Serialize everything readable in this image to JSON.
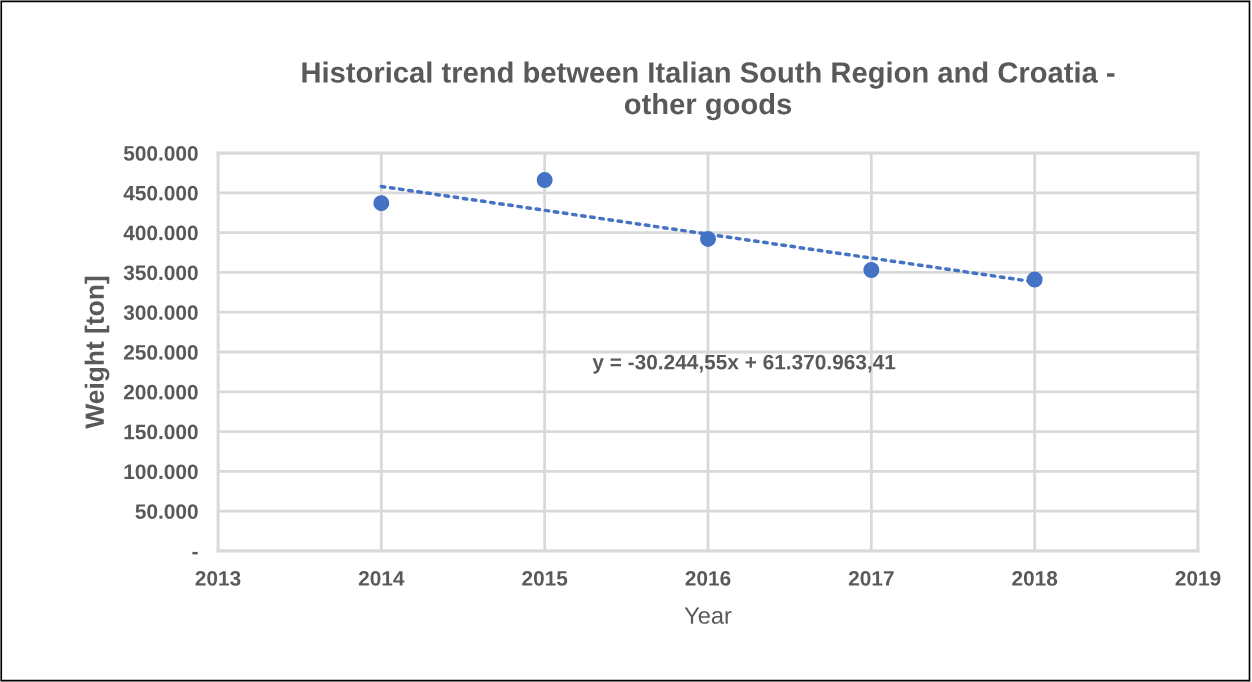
{
  "chart_data": {
    "type": "scatter",
    "title": "Historical trend between Italian South Region and Croatia -\nother goods",
    "xlabel": "Year",
    "ylabel": "Weight [ton]",
    "x": [
      2014,
      2015,
      2016,
      2017,
      2018
    ],
    "series": [
      {
        "color": "#4472c4",
        "marker": "circle",
        "values": [
          437000,
          466000,
          392000,
          353000,
          341000
        ]
      },
      {
        "type": "line",
        "color": "#4472c4",
        "line_style": "dotted",
        "marker": "none",
        "x": [
          2014,
          2018
        ],
        "values": [
          458000,
          338000
        ]
      }
    ],
    "xlim": [
      2013,
      2019
    ],
    "xticks": [
      2013,
      2014,
      2015,
      2016,
      2017,
      2018,
      2019
    ],
    "ylim": [
      0,
      500000
    ],
    "yticks": [
      {
        "value": 0,
        "label": "-"
      },
      {
        "value": 50000,
        "label": "50.000"
      },
      {
        "value": 100000,
        "label": "100.000"
      },
      {
        "value": 150000,
        "label": "150.000"
      },
      {
        "value": 200000,
        "label": "200.000"
      },
      {
        "value": 250000,
        "label": "250.000"
      },
      {
        "value": 300000,
        "label": "300.000"
      },
      {
        "value": 350000,
        "label": "350.000"
      },
      {
        "value": 400000,
        "label": "400.000"
      },
      {
        "value": 450000,
        "label": "450.000"
      },
      {
        "value": 500000,
        "label": "500.000"
      }
    ],
    "annotations": [
      "y = -30.244,55x + 61.370.963,41"
    ],
    "grid": true,
    "legend": false
  }
}
